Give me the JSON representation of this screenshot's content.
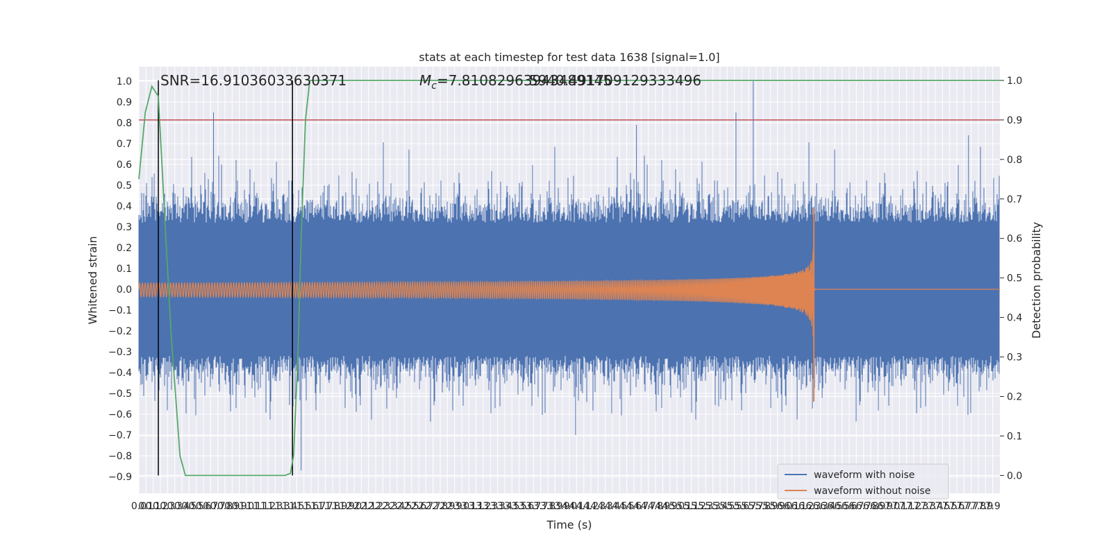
{
  "chart_data": {
    "type": "line",
    "title": "stats at each timestep for test data 1638 [signal=1.0]",
    "xlabel": "Time (s)",
    "ylabel": "Whitened strain",
    "y2label": "Detection probability",
    "annotations": {
      "snr": "SNR=16.91036033630371",
      "mc_prefix": "M",
      "mc_sub": "c",
      "mc_value": "=7.81082963943489145",
      "mc_overlap": "5940.491709129333496"
    },
    "xlim": [
      0.0,
      7.96
    ],
    "ylim": [
      -0.98,
      1.07
    ],
    "y2lim": [
      -0.045,
      1.035
    ],
    "x_ticks": [
      "0.0",
      "0.1",
      "0.1",
      "0.2",
      "0.3",
      "0.3",
      "0.4",
      "0.5",
      "0.5",
      "0.6",
      "0.7",
      "0.7",
      "0.8",
      "0.9",
      "0.9",
      "1.0",
      "1.1",
      "1.1",
      "1.2",
      "1.3",
      "1.3",
      "1.4",
      "1.5",
      "1.5",
      "1.6",
      "1.7",
      "1.7",
      "1.8",
      "1.9",
      "1.9",
      "2.0",
      "2.1",
      "2.1",
      "2.2",
      "2.3",
      "2.3",
      "2.4",
      "2.5",
      "2.5",
      "2.6",
      "2.7",
      "2.7",
      "2.8",
      "2.9",
      "2.9",
      "3.0",
      "3.1",
      "3.1",
      "3.2",
      "3.3",
      "3.3",
      "3.4",
      "3.5",
      "3.5",
      "3.6",
      "3.7",
      "3.7",
      "3.8",
      "3.9",
      "3.9",
      "4.0",
      "4.1",
      "4.1",
      "4.2",
      "4.3",
      "4.3",
      "4.4",
      "4.5",
      "4.5",
      "4.6",
      "4.7",
      "4.7",
      "4.8",
      "4.9",
      "4.9",
      "5.0",
      "5.1",
      "5.1",
      "5.2",
      "5.3",
      "5.3",
      "5.4",
      "5.5",
      "5.5",
      "5.6",
      "5.7",
      "5.7",
      "5.8",
      "5.9",
      "5.9",
      "6.0",
      "6.1",
      "6.1",
      "6.2",
      "6.3",
      "6.3",
      "6.4",
      "6.5",
      "6.5",
      "6.6",
      "6.7",
      "6.7",
      "6.8",
      "6.9",
      "6.9",
      "7.0",
      "7.1",
      "7.1",
      "7.2",
      "7.3",
      "7.3",
      "7.4",
      "7.5",
      "7.5",
      "7.6",
      "7.7",
      "7.7",
      "7.8",
      "7.9",
      "7.9"
    ],
    "y_ticks": [
      -0.9,
      -0.8,
      -0.7,
      -0.6,
      -0.5,
      -0.4,
      -0.3,
      -0.2,
      -0.1,
      0.0,
      0.1,
      0.2,
      0.3,
      0.4,
      0.5,
      0.6,
      0.7,
      0.8,
      0.9,
      1.0
    ],
    "y_tick_labels": [
      "−0.9",
      "−0.8",
      "−0.7",
      "−0.6",
      "−0.5",
      "−0.4",
      "−0.3",
      "−0.2",
      "−0.1",
      "0.0",
      "0.1",
      "0.2",
      "0.3",
      "0.4",
      "0.5",
      "0.6",
      "0.7",
      "0.8",
      "0.9",
      "1.0"
    ],
    "y2_ticks": [
      0.0,
      0.1,
      0.2,
      0.3,
      0.4,
      0.5,
      0.6,
      0.7,
      0.8,
      0.9,
      1.0
    ],
    "y2_tick_labels": [
      "0.0",
      "0.1",
      "0.2",
      "0.3",
      "0.4",
      "0.5",
      "0.6",
      "0.7",
      "0.8",
      "0.9",
      "1.0"
    ],
    "grid": true,
    "background": "#eaeaf2",
    "series": [
      {
        "name": "waveform with noise",
        "color": "#4c72b0",
        "axis": "left",
        "description_envelope": {
          "core_amplitude": 0.32,
          "spike_max": 1.0,
          "spike_min": -0.87
        }
      },
      {
        "name": "waveform without noise",
        "color": "#dd8452",
        "axis": "left",
        "chirp": {
          "start_amplitude": 0.03,
          "peak_time": 6.24,
          "peak_high": 0.39,
          "peak_low": -0.54,
          "end_time": 6.24
        }
      },
      {
        "name": "",
        "color": "#55a868",
        "axis": "right",
        "x": [
          0.0,
          0.06,
          0.12,
          0.18,
          0.25,
          0.3,
          0.34,
          0.38,
          0.43,
          0.5,
          0.6,
          0.8,
          1.0,
          1.2,
          1.35,
          1.4,
          1.43,
          1.47,
          1.5,
          1.54,
          1.58,
          1.65,
          2.0,
          3.0,
          4.0,
          5.0,
          6.0,
          7.0,
          7.96
        ],
        "y": [
          0.75,
          0.92,
          0.985,
          0.96,
          0.6,
          0.35,
          0.2,
          0.05,
          0.0,
          0.0,
          0.0,
          0.0,
          0.0,
          0.0,
          0.0,
          0.005,
          0.05,
          0.3,
          0.6,
          0.9,
          1.0,
          1.0,
          1.0,
          1.0,
          1.0,
          1.0,
          1.0,
          1.0,
          1.0
        ]
      }
    ],
    "threshold": {
      "color": "#c44e52",
      "y2": 0.9
    },
    "vlines": {
      "color": "#000000",
      "x": [
        0.18,
        1.42
      ]
    },
    "legend": {
      "placement": "lower-right",
      "entries": [
        "waveform with noise",
        "waveform without noise"
      ]
    }
  }
}
